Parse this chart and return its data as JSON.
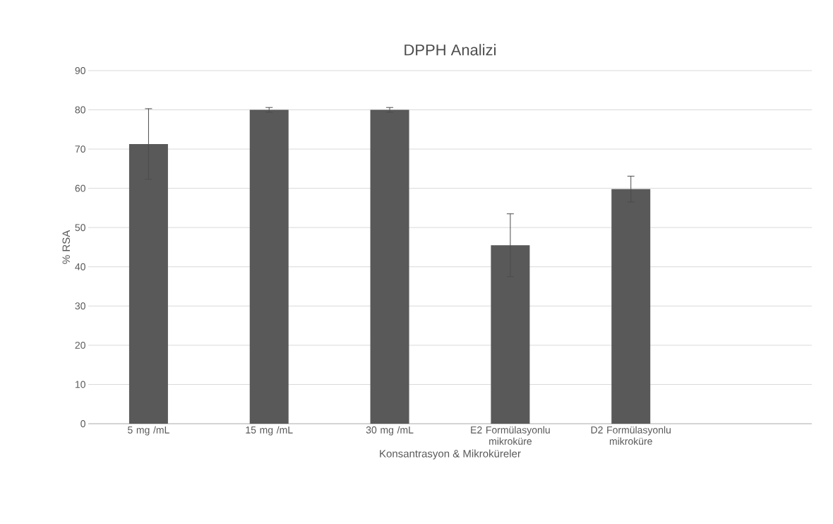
{
  "chart_data": {
    "type": "bar",
    "title": "DPPH Analizi",
    "xlabel": "Konsantrasyon & Mikroküreler",
    "ylabel": "% RSA",
    "categories": [
      "5 mg /mL",
      "15 mg /mL",
      "30 mg /mL",
      "E2 Formülasyonlu mikroküre",
      "D2 Formülasyonlu mikroküre",
      null
    ],
    "values": [
      71.3,
      80,
      80,
      45.5,
      59.8,
      null
    ],
    "errors": [
      9,
      0.6,
      0.6,
      8,
      3.3,
      null
    ],
    "color": "#595959",
    "ylim": [
      0,
      90
    ],
    "yticks": [
      0,
      10,
      20,
      30,
      40,
      50,
      60,
      70,
      80,
      90
    ],
    "grid": "y"
  }
}
